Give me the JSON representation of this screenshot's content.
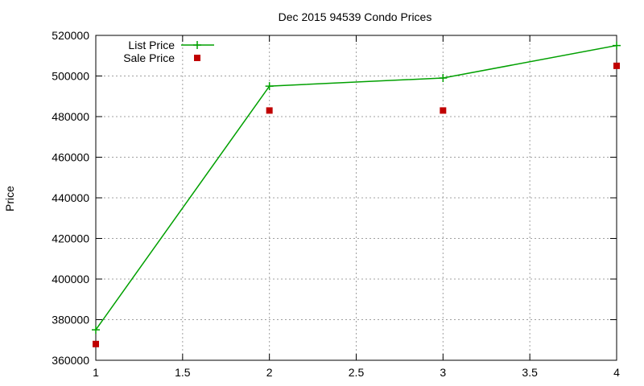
{
  "chart_data": {
    "type": "line",
    "title": "Dec 2015 94539 Condo Prices",
    "xlabel": "",
    "ylabel": "Price",
    "xlim": [
      1,
      4
    ],
    "ylim": [
      360000,
      520000
    ],
    "x_ticks": [
      1,
      1.5,
      2,
      2.5,
      3,
      3.5,
      4
    ],
    "x_tick_labels": [
      "1",
      "1.5",
      "2",
      "2.5",
      "3",
      "3.5",
      "4"
    ],
    "y_ticks": [
      360000,
      380000,
      400000,
      420000,
      440000,
      460000,
      480000,
      500000,
      520000
    ],
    "y_tick_labels": [
      "360000",
      "380000",
      "400000",
      "420000",
      "440000",
      "460000",
      "480000",
      "500000",
      "520000"
    ],
    "grid": true,
    "legend_position": "top-left",
    "series": [
      {
        "name": "List Price",
        "style": "lines+points",
        "marker": "plus",
        "color": "#00a000",
        "points": [
          [
            1,
            375000
          ],
          [
            2,
            495000
          ],
          [
            3,
            499000
          ],
          [
            4,
            515000
          ]
        ]
      },
      {
        "name": "Sale Price",
        "style": "points",
        "marker": "square",
        "color": "#c00000",
        "points": [
          [
            1,
            368000
          ],
          [
            2,
            483000
          ],
          [
            3,
            483000
          ],
          [
            4,
            505000
          ]
        ]
      }
    ]
  }
}
